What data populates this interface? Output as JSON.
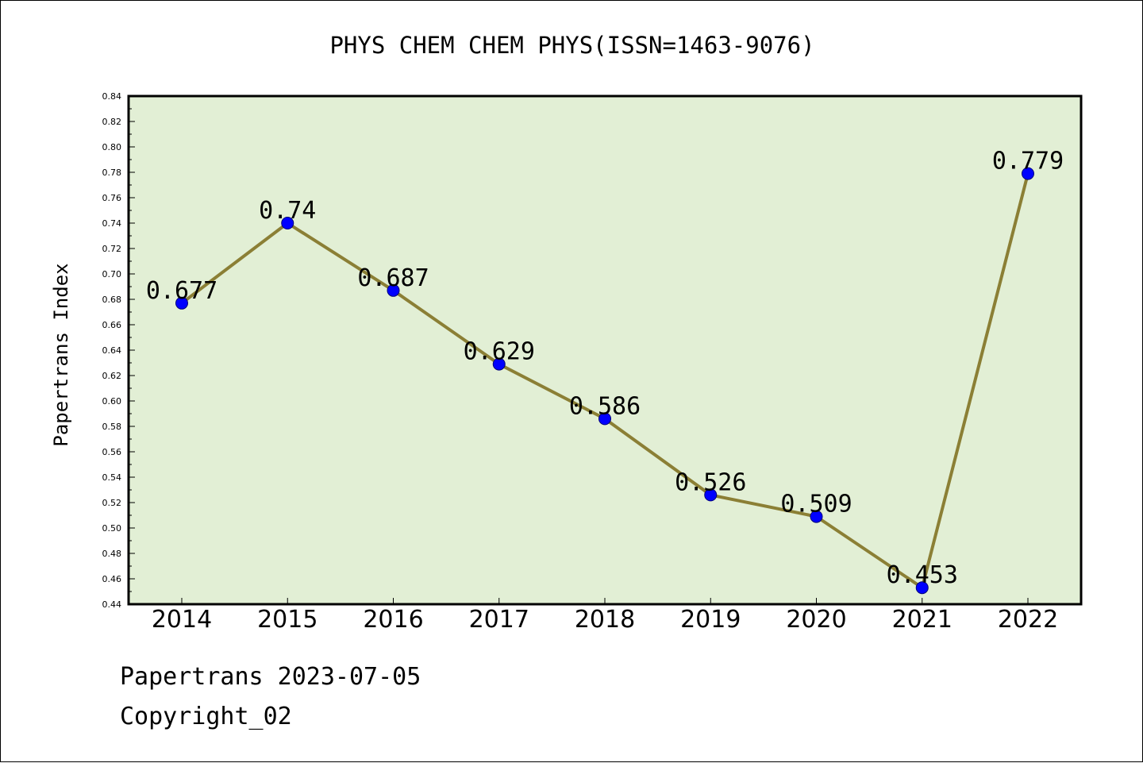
{
  "chart_data": {
    "type": "line",
    "title": "PHYS CHEM CHEM PHYS(ISSN=1463-9076)",
    "xlabel": "",
    "ylabel": "Papertrans Index",
    "categories": [
      "2014",
      "2015",
      "2016",
      "2017",
      "2018",
      "2019",
      "2020",
      "2021",
      "2022"
    ],
    "values": [
      0.677,
      0.74,
      0.687,
      0.629,
      0.586,
      0.526,
      0.509,
      0.453,
      0.779
    ],
    "data_labels": [
      "0.677",
      "0.74",
      "0.687",
      "0.629",
      "0.586",
      "0.526",
      "0.509",
      "0.453",
      "0.779"
    ],
    "ylim": [
      0.44,
      0.84
    ],
    "yticks": [
      "0.44",
      "0.46",
      "0.48",
      "0.50",
      "0.52",
      "0.54",
      "0.56",
      "0.58",
      "0.60",
      "0.62",
      "0.64",
      "0.66",
      "0.68",
      "0.70",
      "0.72",
      "0.74",
      "0.76",
      "0.78",
      "0.80",
      "0.82",
      "0.84"
    ],
    "grid": false,
    "legend": "none",
    "colors": {
      "plot_background": "#e2efd5",
      "line": "#8b7f35",
      "marker": "#0000ff"
    }
  },
  "footer": {
    "line1": "Papertrans 2023-07-05",
    "line2": "Copyright_02"
  }
}
